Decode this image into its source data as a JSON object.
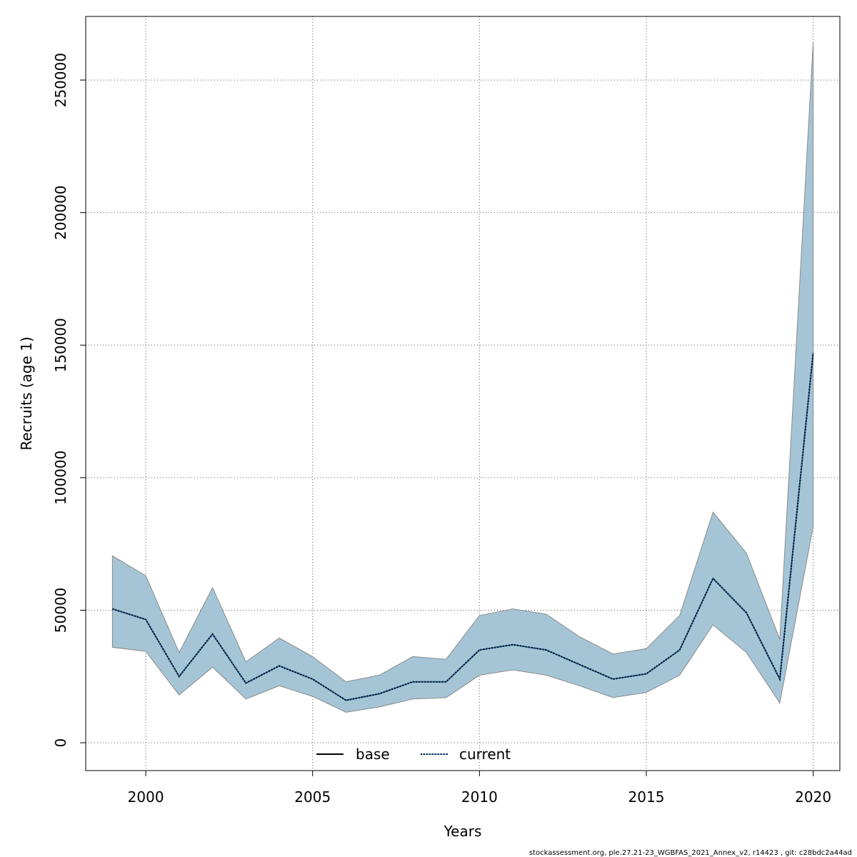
{
  "chart_data": {
    "type": "area",
    "xlabel": "Years",
    "ylabel": "Recruits (age 1)",
    "xlim": [
      1998.2,
      2020.8
    ],
    "ylim": [
      -10500,
      274000
    ],
    "x_ticks": [
      2000,
      2005,
      2010,
      2015,
      2020
    ],
    "x_tick_labels": [
      "2000",
      "2005",
      "2010",
      "2015",
      "2020"
    ],
    "y_ticks": [
      0,
      50000,
      100000,
      150000,
      200000,
      250000
    ],
    "y_tick_labels": [
      "0",
      "50000",
      "100000",
      "150000",
      "200000",
      "250000"
    ],
    "grid": true,
    "legend_position": "bottom-center",
    "x": [
      1999,
      2000,
      2001,
      2002,
      2003,
      2004,
      2005,
      2006,
      2007,
      2008,
      2009,
      2010,
      2011,
      2012,
      2013,
      2014,
      2015,
      2016,
      2017,
      2018,
      2019,
      2020
    ],
    "series": [
      {
        "name": "base",
        "line_style": "solid",
        "color": "#000000",
        "values": [
          50500,
          46500,
          25000,
          41000,
          22500,
          29000,
          24000,
          16000,
          18500,
          23000,
          23000,
          35000,
          37000,
          35000,
          29500,
          24000,
          26000,
          35000,
          62000,
          49000,
          24000,
          147000
        ]
      },
      {
        "name": "current",
        "line_style": "dotted",
        "color": "#1f5fa0",
        "values": [
          50500,
          46500,
          25000,
          41000,
          22500,
          29000,
          24000,
          16000,
          18500,
          23000,
          23000,
          35000,
          37000,
          35000,
          29500,
          24000,
          26000,
          35000,
          62000,
          49000,
          24000,
          147000
        ]
      }
    ],
    "band_lower": [
      36000,
      34500,
      18000,
      28500,
      16500,
      21500,
      17500,
      11500,
      13500,
      16500,
      17000,
      25500,
      27500,
      25500,
      21500,
      17000,
      19000,
      25500,
      44500,
      34000,
      15000,
      81500
    ],
    "band_upper": [
      70500,
      63000,
      34000,
      58500,
      30500,
      39500,
      32500,
      23000,
      25500,
      32500,
      31500,
      48000,
      50500,
      48500,
      40000,
      33500,
      35500,
      48000,
      87000,
      71500,
      39000,
      264000
    ],
    "colors": {
      "band_fill": "#a5c5d6",
      "band_stroke": "#8a8a8a",
      "grid": "#555555",
      "axes": "#000000"
    },
    "footer": "stockassessment.org, ple.27.21-23_WGBFAS_2021_Annex_v2, r14423 , git: c28bdc2a44ad"
  }
}
